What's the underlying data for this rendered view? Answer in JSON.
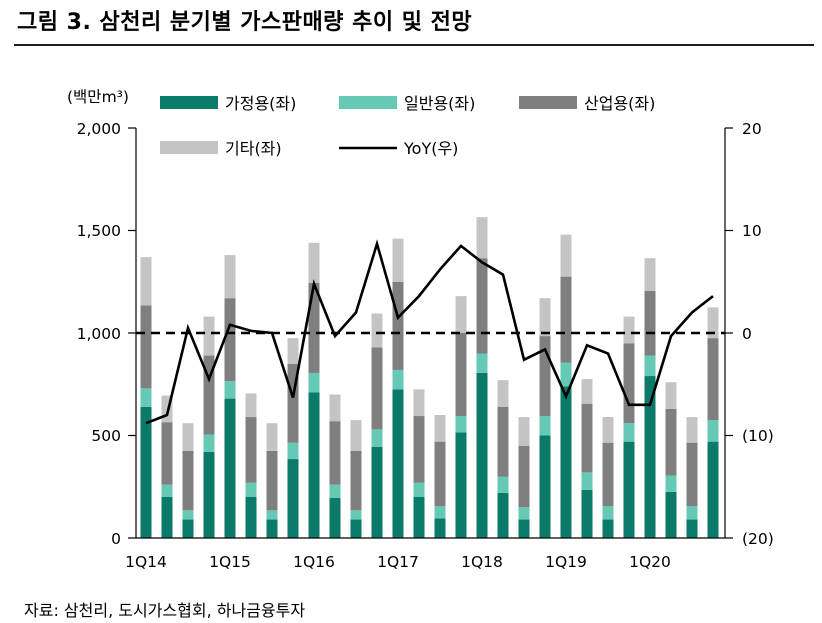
{
  "title": "그림 3. 삼천리 분기별 가스판매량 추이 및 전망",
  "source": "자료: 삼천리, 도시가스협회, 하나금융투자",
  "chart_data": {
    "type": "bar",
    "stacked": true,
    "title": "그림 3. 삼천리 분기별 가스판매량 추이 및 전망",
    "y_left_label": "(백만m³)",
    "y_left_range": [
      0,
      2000
    ],
    "y_left_ticks": [
      "0",
      "500",
      "1,000",
      "1,500",
      "2,000"
    ],
    "y_right_range": [
      -20,
      20
    ],
    "y_right_ticks": [
      "(20)",
      "(10)",
      "0",
      "10",
      "20"
    ],
    "x_tick_labels": [
      "1Q14",
      "1Q15",
      "1Q16",
      "1Q17",
      "1Q18",
      "1Q19",
      "1Q20"
    ],
    "reference_line": 0,
    "categories": [
      "1Q14",
      "2Q14",
      "3Q14",
      "4Q14",
      "1Q15",
      "2Q15",
      "3Q15",
      "4Q15",
      "1Q16",
      "2Q16",
      "3Q16",
      "4Q16",
      "1Q17",
      "2Q17",
      "3Q17",
      "4Q17",
      "1Q18",
      "2Q18",
      "3Q18",
      "4Q18",
      "1Q19",
      "2Q19",
      "3Q19",
      "4Q19",
      "1Q20",
      "2Q20",
      "3Q20",
      "4Q20"
    ],
    "series": [
      {
        "name": "가정용(좌)",
        "axis": "left",
        "kind": "bar",
        "color": "#0a7a6a",
        "values": [
          640,
          200,
          90,
          420,
          680,
          200,
          90,
          385,
          710,
          195,
          90,
          445,
          725,
          200,
          95,
          515,
          805,
          220,
          90,
          500,
          740,
          235,
          90,
          470,
          790,
          225,
          90,
          470
        ]
      },
      {
        "name": "일반용(좌)",
        "axis": "left",
        "kind": "bar",
        "color": "#66c9b5",
        "values": [
          90,
          60,
          45,
          85,
          85,
          70,
          45,
          80,
          95,
          65,
          45,
          85,
          95,
          70,
          60,
          80,
          95,
          80,
          60,
          95,
          115,
          85,
          65,
          90,
          100,
          80,
          65,
          105
        ]
      },
      {
        "name": "산업용(좌)",
        "axis": "left",
        "kind": "bar",
        "color": "#7f7f7f",
        "values": [
          405,
          305,
          290,
          385,
          405,
          320,
          290,
          385,
          440,
          310,
          290,
          400,
          430,
          325,
          315,
          405,
          465,
          340,
          300,
          390,
          420,
          335,
          310,
          390,
          315,
          325,
          310,
          400
        ]
      },
      {
        "name": "기타(좌)",
        "axis": "left",
        "kind": "bar",
        "color": "#c4c4c4",
        "values": [
          235,
          130,
          135,
          190,
          210,
          115,
          135,
          125,
          195,
          130,
          150,
          165,
          210,
          130,
          130,
          180,
          200,
          130,
          140,
          185,
          205,
          120,
          125,
          130,
          160,
          130,
          125,
          150
        ]
      },
      {
        "name": "YoY(우)",
        "axis": "right",
        "kind": "line",
        "color": "#000000",
        "values": [
          -8.8,
          -8.0,
          0.5,
          -4.5,
          0.8,
          0.2,
          0.0,
          -6.3,
          4.8,
          -0.3,
          2.0,
          8.7,
          1.5,
          3.6,
          6.2,
          8.5,
          6.9,
          5.7,
          -2.6,
          -1.6,
          -6.2,
          -1.2,
          -2.0,
          -7.0,
          -7.0,
          -0.3,
          2.0,
          3.6
        ]
      }
    ]
  }
}
